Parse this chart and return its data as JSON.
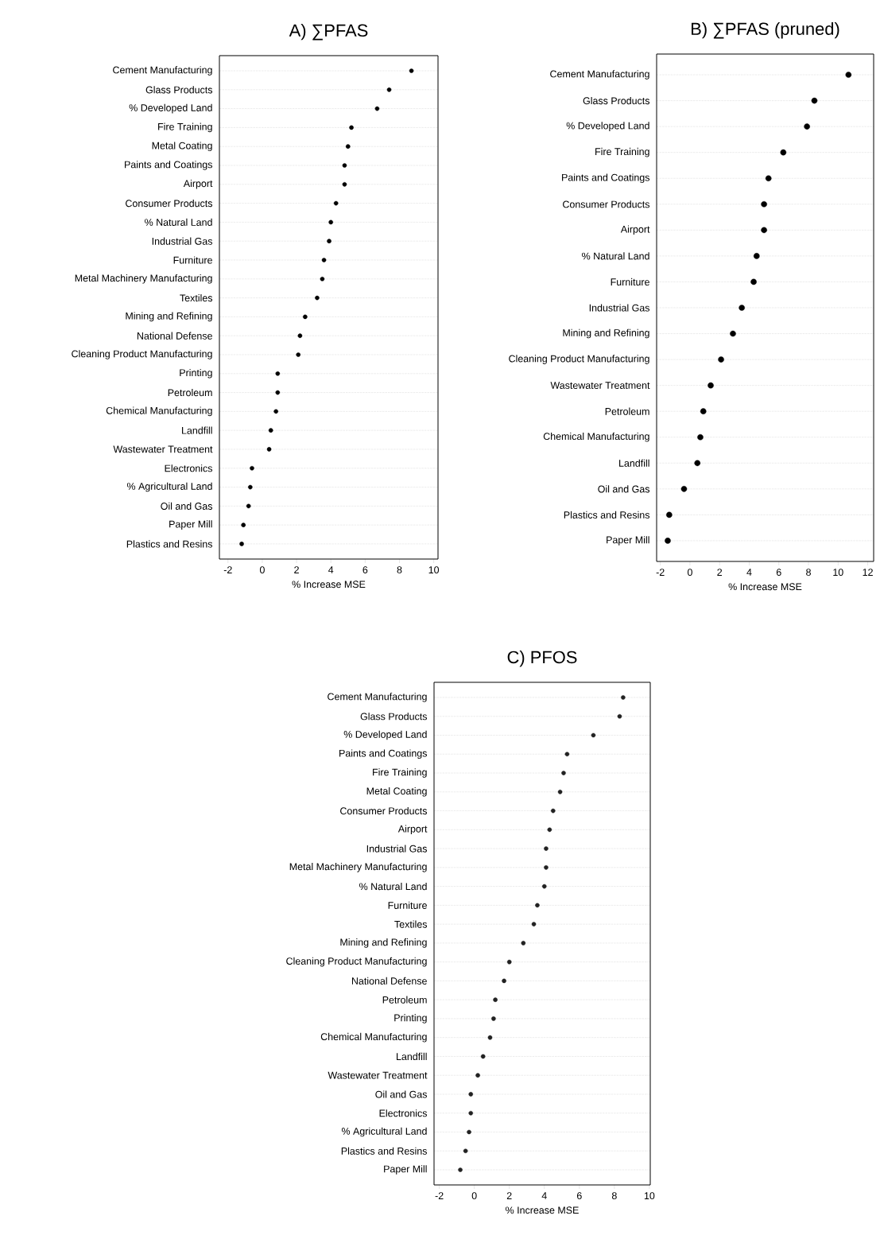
{
  "chart_data": [
    {
      "type": "scatter",
      "orientation": "horizontal",
      "title": "A) ∑PFAS",
      "xlabel": "% Increase MSE",
      "categories": [
        "Cement Manufacturing",
        "Glass Products",
        "% Developed Land",
        "Fire Training",
        "Metal Coating",
        "Paints and Coatings",
        "Airport",
        "Consumer Products",
        "% Natural Land",
        "Industrial Gas",
        "Furniture",
        "Metal Machinery Manufacturing",
        "Textiles",
        "Mining and Refining",
        "National Defense",
        "Cleaning Product Manufacturing",
        "Printing",
        "Petroleum",
        "Chemical Manufacturing",
        "Landfill",
        "Wastewater Treatment",
        "Electronics",
        "% Agricultural Land",
        "Oil and Gas",
        "Paper Mill",
        "Plastics and Resins"
      ],
      "values": [
        8.7,
        7.4,
        6.7,
        5.2,
        5.0,
        4.8,
        4.8,
        4.3,
        4.0,
        3.9,
        3.6,
        3.5,
        3.2,
        2.5,
        2.2,
        2.1,
        0.9,
        0.9,
        0.8,
        0.5,
        0.4,
        -0.6,
        -0.7,
        -0.8,
        -1.1,
        -1.2
      ],
      "color": "#000000",
      "marker": "circle",
      "grid": "y",
      "xlim": [
        -2.5,
        10.25
      ],
      "xticks": [
        -2,
        0,
        2,
        4,
        6,
        8,
        10
      ]
    },
    {
      "type": "scatter",
      "orientation": "horizontal",
      "title": "B) ∑PFAS (pruned)",
      "xlabel": "% Increase MSE",
      "categories": [
        "Cement Manufacturing",
        "Glass Products",
        "% Developed Land",
        "Fire Training",
        "Paints and Coatings",
        "Consumer Products",
        "Airport",
        "% Natural Land",
        "Furniture",
        "Industrial Gas",
        "Mining and Refining",
        "Cleaning Product Manufacturing",
        "Wastewater Treatment",
        "Petroleum",
        "Chemical Manufacturing",
        "Landfill",
        "Oil and Gas",
        "Plastics and Resins",
        "Paper Mill"
      ],
      "values": [
        10.7,
        8.4,
        7.9,
        6.3,
        5.3,
        5.0,
        5.0,
        4.5,
        4.3,
        3.5,
        2.9,
        2.1,
        1.4,
        0.9,
        0.7,
        0.5,
        -0.4,
        -1.4,
        -1.5
      ],
      "color": "#000000",
      "marker": "circle",
      "grid": "y",
      "xlim": [
        -2.25,
        12.4
      ],
      "xticks": [
        -2,
        0,
        2,
        4,
        6,
        8,
        10,
        12
      ]
    },
    {
      "type": "scatter",
      "orientation": "horizontal",
      "title": "C) PFOS",
      "xlabel": "% Increase MSE",
      "categories": [
        "Cement Manufacturing",
        "Glass Products",
        "% Developed Land",
        "Paints and Coatings",
        "Fire Training",
        "Metal Coating",
        "Consumer Products",
        "Airport",
        "Industrial Gas",
        "Metal Machinery Manufacturing",
        "% Natural Land",
        "Furniture",
        "Textiles",
        "Mining and Refining",
        "Cleaning Product Manufacturing",
        "National Defense",
        "Petroleum",
        "Printing",
        "Chemical Manufacturing",
        "Landfill",
        "Wastewater Treatment",
        "Oil and Gas",
        "Electronics",
        "% Agricultural Land",
        "Plastics and Resins",
        "Paper Mill"
      ],
      "values": [
        8.5,
        8.3,
        6.8,
        5.3,
        5.1,
        4.9,
        4.5,
        4.3,
        4.1,
        4.1,
        4.0,
        3.6,
        3.4,
        2.8,
        2.0,
        1.7,
        1.2,
        1.1,
        0.9,
        0.5,
        0.2,
        -0.2,
        -0.2,
        -0.3,
        -0.5,
        -0.8
      ],
      "color": "#222222",
      "marker": "circle",
      "grid": "y",
      "xlim": [
        -2.3,
        10.05
      ],
      "xticks": [
        -2,
        0,
        2,
        4,
        6,
        8,
        10
      ]
    }
  ]
}
